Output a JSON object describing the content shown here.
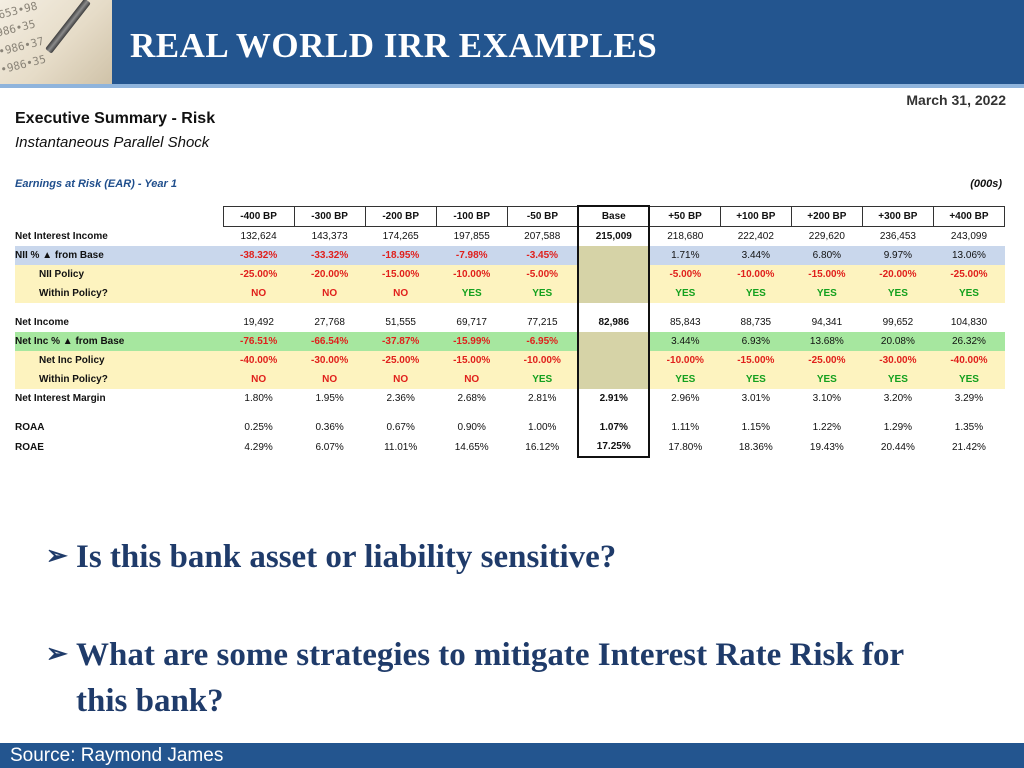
{
  "header": {
    "title": "REAL WORLD IRR EXAMPLES",
    "corner_numbers": [
      "653•98",
      "986•35",
      "•986•37",
      "•986•35"
    ]
  },
  "report": {
    "date": "March 31, 2022",
    "title": "Executive Summary - Risk",
    "subtitle": "Instantaneous Parallel Shock",
    "section": "Earnings at Risk (EAR) - Year 1",
    "units": "(000s)"
  },
  "table": {
    "columns": [
      "-400 BP",
      "-300 BP",
      "-200 BP",
      "-100 BP",
      "-50 BP",
      "Base",
      "+50 BP",
      "+100 BP",
      "+200 BP",
      "+300 BP",
      "+400 BP"
    ],
    "rows": [
      {
        "label": "Net Interest Income",
        "cells": [
          "132,624",
          "143,373",
          "174,265",
          "197,855",
          "207,588",
          "215,009",
          "218,680",
          "222,402",
          "229,620",
          "236,453",
          "243,099"
        ]
      },
      {
        "label": "NII % ▲ from Base",
        "cells": [
          "-38.32%",
          "-33.32%",
          "-18.95%",
          "-7.98%",
          "-3.45%",
          "",
          "1.71%",
          "3.44%",
          "6.80%",
          "9.97%",
          "13.06%"
        ]
      },
      {
        "label": "NII Policy",
        "cells": [
          "-25.00%",
          "-20.00%",
          "-15.00%",
          "-10.00%",
          "-5.00%",
          "",
          "-5.00%",
          "-10.00%",
          "-15.00%",
          "-20.00%",
          "-25.00%"
        ]
      },
      {
        "label": "Within Policy?",
        "cells": [
          "NO",
          "NO",
          "NO",
          "YES",
          "YES",
          "",
          "YES",
          "YES",
          "YES",
          "YES",
          "YES"
        ]
      },
      {
        "label": "Net Income",
        "cells": [
          "19,492",
          "27,768",
          "51,555",
          "69,717",
          "77,215",
          "82,986",
          "85,843",
          "88,735",
          "94,341",
          "99,652",
          "104,830"
        ]
      },
      {
        "label": "Net Inc % ▲ from Base",
        "cells": [
          "-76.51%",
          "-66.54%",
          "-37.87%",
          "-15.99%",
          "-6.95%",
          "",
          "3.44%",
          "6.93%",
          "13.68%",
          "20.08%",
          "26.32%"
        ]
      },
      {
        "label": "Net Inc Policy",
        "cells": [
          "-40.00%",
          "-30.00%",
          "-25.00%",
          "-15.00%",
          "-10.00%",
          "",
          "-10.00%",
          "-15.00%",
          "-25.00%",
          "-30.00%",
          "-40.00%"
        ]
      },
      {
        "label": "Within Policy?",
        "cells": [
          "NO",
          "NO",
          "NO",
          "NO",
          "YES",
          "",
          "YES",
          "YES",
          "YES",
          "YES",
          "YES"
        ]
      },
      {
        "label": "Net Interest Margin",
        "cells": [
          "1.80%",
          "1.95%",
          "2.36%",
          "2.68%",
          "2.81%",
          "2.91%",
          "2.96%",
          "3.01%",
          "3.10%",
          "3.20%",
          "3.29%"
        ]
      },
      {
        "label": "ROAA",
        "cells": [
          "0.25%",
          "0.36%",
          "0.67%",
          "0.90%",
          "1.00%",
          "1.07%",
          "1.11%",
          "1.15%",
          "1.22%",
          "1.29%",
          "1.35%"
        ]
      },
      {
        "label": "ROAE",
        "cells": [
          "4.29%",
          "6.07%",
          "11.01%",
          "14.65%",
          "16.12%",
          "17.25%",
          "17.80%",
          "18.36%",
          "19.43%",
          "20.44%",
          "21.42%"
        ]
      }
    ]
  },
  "colors": {
    "header_blue": "#23558f",
    "bullet_text": "#1f3b6a",
    "negative_red": "#e0201c",
    "yes_green": "#13a01e",
    "row_blue": "#c9d7ec",
    "row_green": "#a6e79f",
    "row_yellow": "#fdf3bf"
  },
  "bullets": [
    "Is this bank asset or liability sensitive?",
    "What are some strategies to mitigate Interest Rate Risk for this bank?"
  ],
  "footer": {
    "source": "Source: Raymond James"
  }
}
